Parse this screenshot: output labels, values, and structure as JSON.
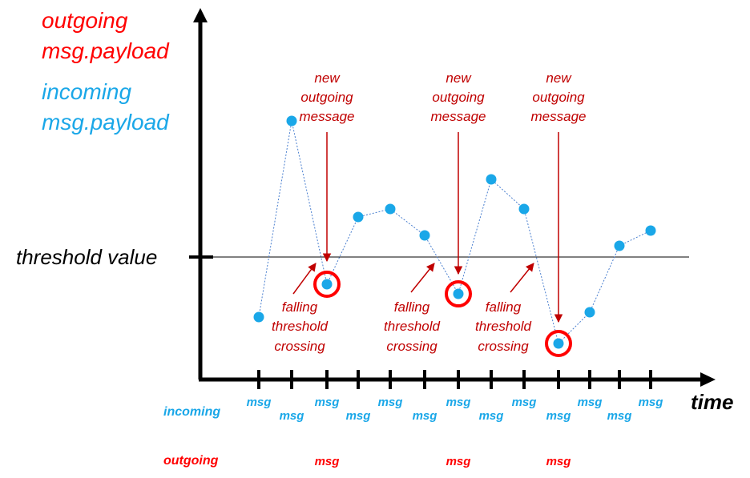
{
  "colors": {
    "outgoing": "#ff0000",
    "incoming": "#1aa7e8",
    "annotation": "#c00000",
    "axis": "#000000"
  },
  "legend": {
    "outgoing_line1": "outgoing",
    "outgoing_line2": "msg.payload",
    "incoming_line1": "incoming",
    "incoming_line2": "msg.payload"
  },
  "threshold_label": "threshold value",
  "time_label": "time",
  "rows": {
    "incoming": "incoming",
    "outgoing": "outgoing"
  },
  "msg_label": "msg",
  "new_message": {
    "line1": "new",
    "line2": "outgoing",
    "line3": "message"
  },
  "falling": {
    "line1": "falling",
    "line2": "threshold",
    "line3": "crossing"
  },
  "series": {
    "name": "incoming msg.payload",
    "threshold": 0,
    "values": [
      -75,
      170,
      -34,
      50,
      60,
      27,
      -46,
      97,
      60,
      -108,
      -69,
      14,
      33
    ],
    "outgoing_indices": [
      2,
      6,
      9
    ]
  }
}
